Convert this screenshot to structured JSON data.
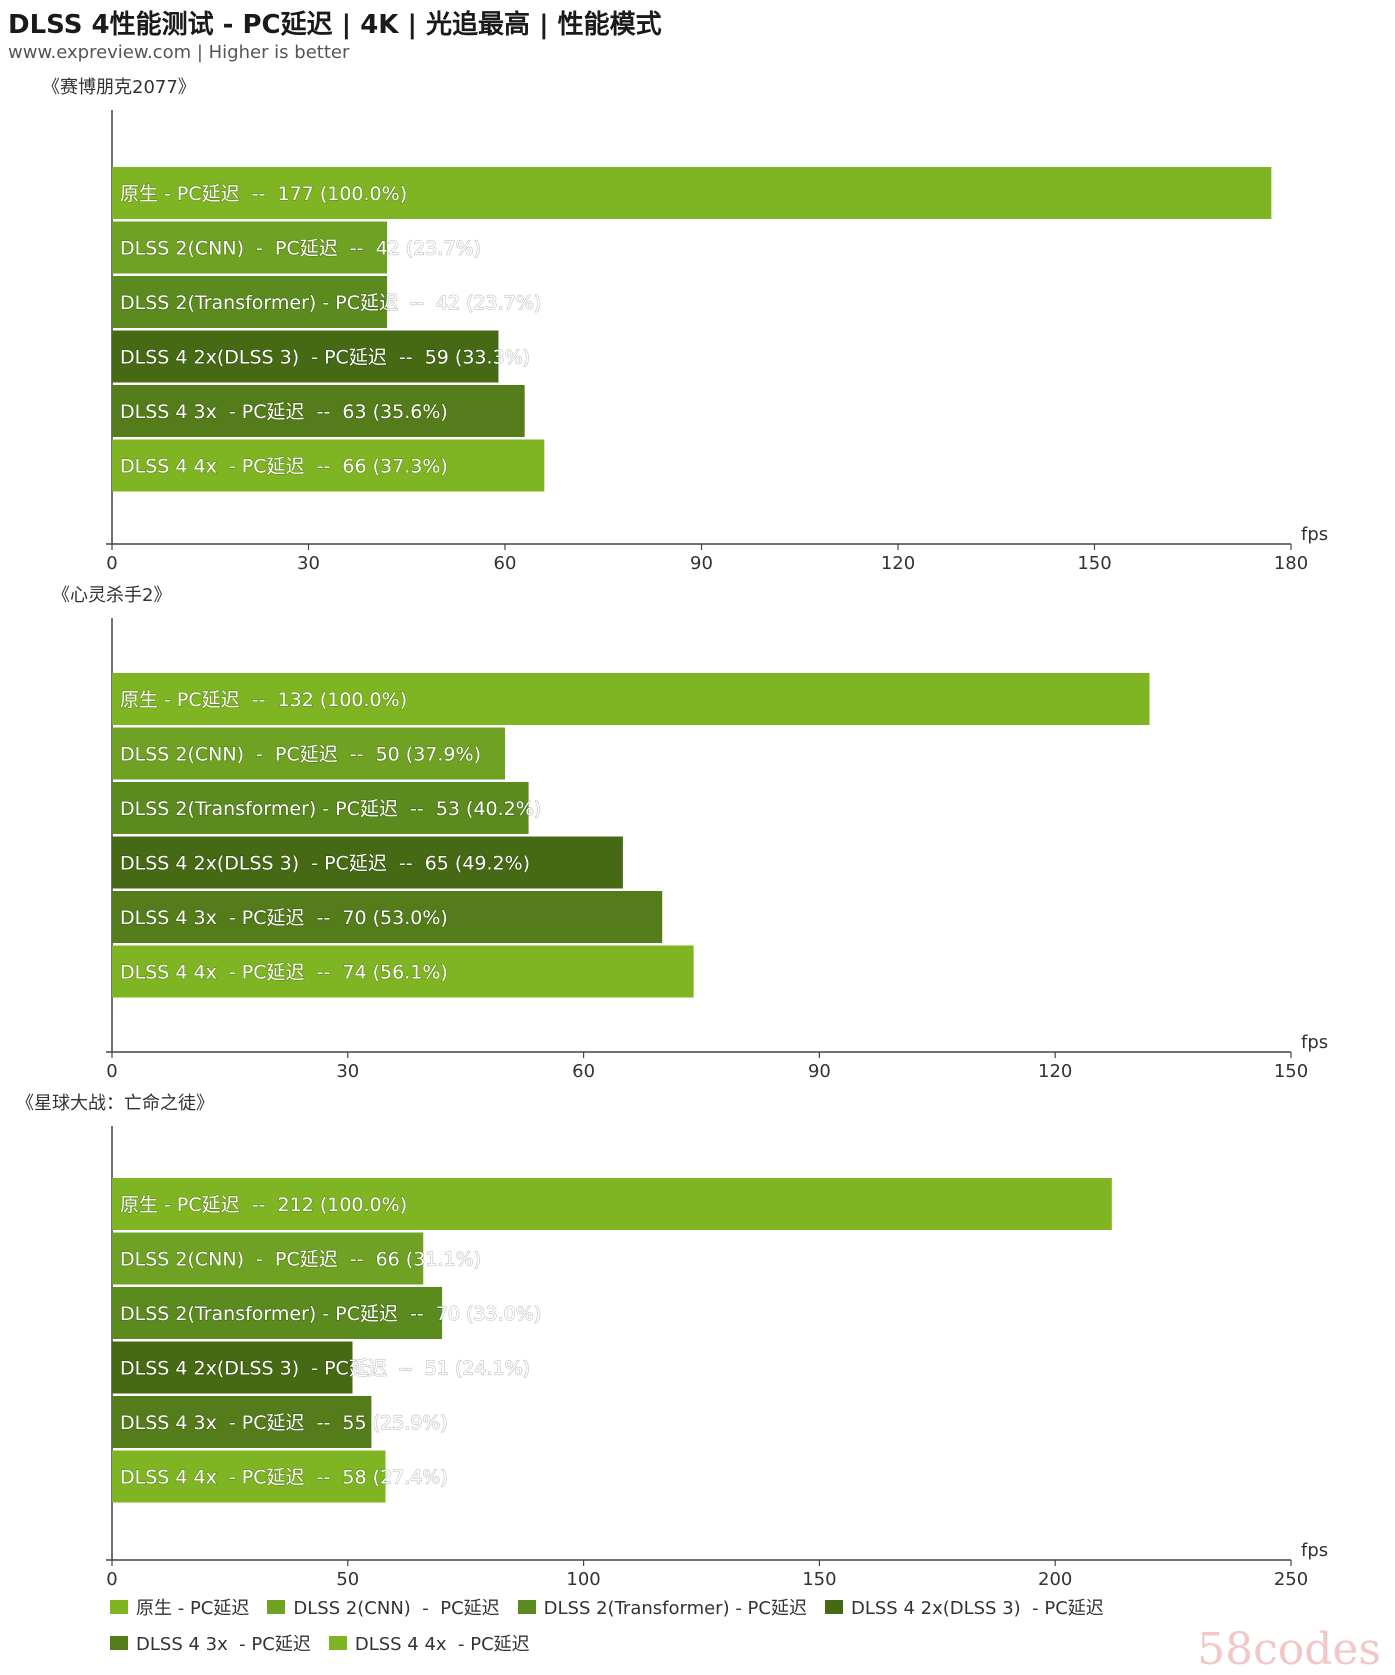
{
  "title": "DLSS 4性能测试 - PC延迟 | 4K | 光追最高 | 性能模式",
  "subtitle": "www.expreview.com | Higher is better",
  "watermark": "58codes",
  "legend": [
    {
      "label": "原生 - PC延迟",
      "color": "#7fb522"
    },
    {
      "label": "DLSS 2(CNN)  -  PC延迟",
      "color": "#6fa123"
    },
    {
      "label": "DLSS 2(Transformer) - PC延迟",
      "color": "#5b8a1e"
    },
    {
      "label": "DLSS 4 2x(DLSS 3)  - PC延迟",
      "color": "#466a14"
    },
    {
      "label": "DLSS 4 3x  - PC延迟",
      "color": "#557c1a"
    },
    {
      "label": "DLSS 4 4x  - PC延迟",
      "color": "#7fb522"
    }
  ],
  "chart_data": [
    {
      "type": "bar",
      "title": "《赛博朋克2077》",
      "xlabel": "fps",
      "xlim": [
        0,
        180
      ],
      "ticks": [
        0,
        30,
        60,
        90,
        120,
        150,
        180
      ],
      "categories": [
        "原生 - PC延迟",
        "DLSS 2(CNN)  -  PC延迟",
        "DLSS 2(Transformer) - PC延迟",
        "DLSS 4 2x(DLSS 3)  - PC延迟",
        "DLSS 4 3x  - PC延迟",
        "DLSS 4 4x  - PC延迟"
      ],
      "values": [
        177,
        42,
        42,
        59,
        63,
        66
      ],
      "labels": [
        "原生 - PC延迟  --  177 (100.0%)",
        "DLSS 2(CNN)  -  PC延迟  --  42 (23.7%)",
        "DLSS 2(Transformer) - PC延迟  --  42 (23.7%)",
        "DLSS 4 2x(DLSS 3)  - PC延迟  --  59 (33.3%)",
        "DLSS 4 3x  - PC延迟  --  63 (35.6%)",
        "DLSS 4 4x  - PC延迟  --  66 (37.3%)"
      ]
    },
    {
      "type": "bar",
      "title": "《心灵杀手2》",
      "xlabel": "fps",
      "xlim": [
        0,
        150
      ],
      "ticks": [
        0,
        30,
        60,
        90,
        120,
        150
      ],
      "categories": [
        "原生 - PC延迟",
        "DLSS 2(CNN)  -  PC延迟",
        "DLSS 2(Transformer) - PC延迟",
        "DLSS 4 2x(DLSS 3)  - PC延迟",
        "DLSS 4 3x  - PC延迟",
        "DLSS 4 4x  - PC延迟"
      ],
      "values": [
        132,
        50,
        53,
        65,
        70,
        74
      ],
      "labels": [
        "原生 - PC延迟  --  132 (100.0%)",
        "DLSS 2(CNN)  -  PC延迟  --  50 (37.9%)",
        "DLSS 2(Transformer) - PC延迟  --  53 (40.2%)",
        "DLSS 4 2x(DLSS 3)  - PC延迟  --  65 (49.2%)",
        "DLSS 4 3x  - PC延迟  --  70 (53.0%)",
        "DLSS 4 4x  - PC延迟  --  74 (56.1%)"
      ]
    },
    {
      "type": "bar",
      "title": "《星球大战：亡命之徒》",
      "xlabel": "fps",
      "xlim": [
        0,
        250
      ],
      "ticks": [
        0,
        50,
        100,
        150,
        200,
        250
      ],
      "categories": [
        "原生 - PC延迟",
        "DLSS 2(CNN)  -  PC延迟",
        "DLSS 2(Transformer) - PC延迟",
        "DLSS 4 2x(DLSS 3)  - PC延迟",
        "DLSS 4 3x  - PC延迟",
        "DLSS 4 4x  - PC延迟"
      ],
      "values": [
        212,
        66,
        70,
        51,
        55,
        58
      ],
      "labels": [
        "原生 - PC延迟  --  212 (100.0%)",
        "DLSS 2(CNN)  -  PC延迟  --  66 (31.1%)",
        "DLSS 2(Transformer) - PC延迟  --  70 (33.0%)",
        "DLSS 4 2x(DLSS 3)  - PC延迟  --  51 (24.1%)",
        "DLSS 4 3x  - PC延迟  --  55 (25.9%)",
        "DLSS 4 4x  - PC延迟  --  58 (27.4%)"
      ]
    }
  ]
}
